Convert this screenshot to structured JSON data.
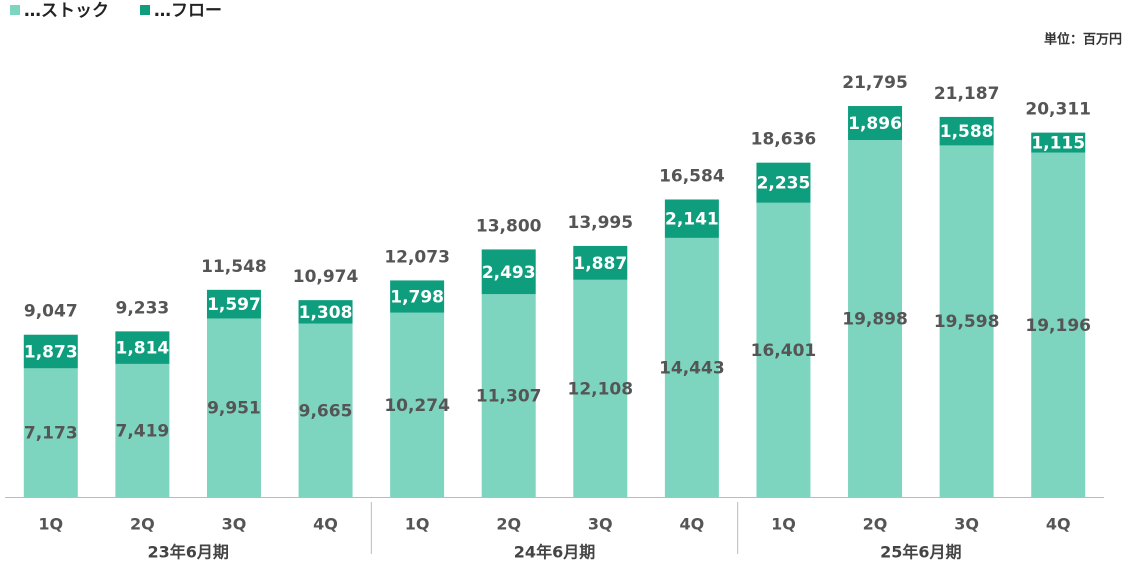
{
  "chart_data": {
    "type": "bar",
    "stacked": true,
    "unit_label": "単位：百万円",
    "categories": [
      "1Q",
      "2Q",
      "3Q",
      "4Q",
      "1Q",
      "2Q",
      "3Q",
      "4Q",
      "1Q",
      "2Q",
      "3Q",
      "4Q"
    ],
    "groups": [
      "23年6月期",
      "24年6月期",
      "25年6月期"
    ],
    "series": [
      {
        "name": "…ストック",
        "color": "#7dd5c0",
        "values": [
          7173,
          7419,
          9951,
          9665,
          10274,
          11307,
          12108,
          14443,
          16401,
          19898,
          19598,
          19196
        ],
        "value_labels": [
          "7,173",
          "7,419",
          "9,951",
          "9,665",
          "10,274",
          "11,307",
          "12,108",
          "14,443",
          "16,401",
          "19,898",
          "19,598",
          "19,196"
        ]
      },
      {
        "name": "…フロー",
        "color": "#0e9e7e",
        "values": [
          1873,
          1814,
          1597,
          1308,
          1798,
          2493,
          1887,
          2141,
          2235,
          1896,
          1588,
          1115
        ],
        "value_labels": [
          "1,873",
          "1,814",
          "1,597",
          "1,308",
          "1,798",
          "2,493",
          "1,887",
          "2,141",
          "2,235",
          "1,896",
          "1,588",
          "1,115"
        ]
      }
    ],
    "totals": {
      "values": [
        9047,
        9233,
        11548,
        10974,
        12073,
        13800,
        13995,
        16584,
        18636,
        21795,
        21187,
        20311
      ],
      "value_labels": [
        "9,047",
        "9,233",
        "11,548",
        "10,974",
        "12,073",
        "13,800",
        "13,995",
        "16,584",
        "18,636",
        "21,795",
        "21,187",
        "20,311"
      ]
    }
  }
}
